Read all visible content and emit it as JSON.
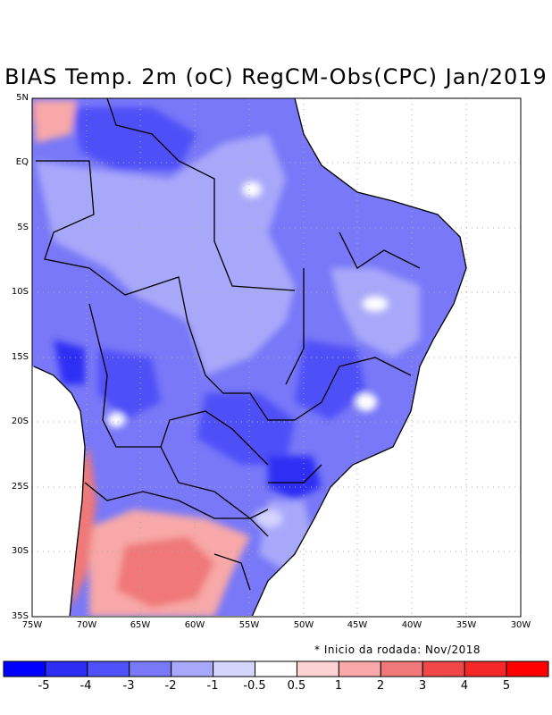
{
  "title": "BIAS Temp. 2m (oC) RegCM-Obs(CPC) Jan/2019",
  "note": "* Inicio da rodada: Nov/2018",
  "map": {
    "lon_range": [
      -75,
      -30
    ],
    "lat_range": [
      -35,
      5
    ],
    "x_ticks": [
      "75W",
      "70W",
      "65W",
      "60W",
      "55W",
      "50W",
      "45W",
      "40W",
      "35W",
      "30W"
    ],
    "y_ticks": [
      "5N",
      "EQ",
      "5S",
      "10S",
      "15S",
      "20S",
      "25S",
      "30S",
      "35S"
    ],
    "grid": "dotted"
  },
  "colorbar": {
    "labels": [
      "-5",
      "-4",
      "-3",
      "-2",
      "-1",
      "-0.5",
      "0.5",
      "1",
      "2",
      "3",
      "4",
      "5"
    ],
    "colors": [
      "#0000ff",
      "#2d2df4",
      "#5050f8",
      "#7878f8",
      "#a8a8fa",
      "#d4d4fc",
      "#ffffff",
      "#fcd2d2",
      "#f8a8a8",
      "#f07878",
      "#f04848",
      "#f42828",
      "#ff0000"
    ]
  }
}
